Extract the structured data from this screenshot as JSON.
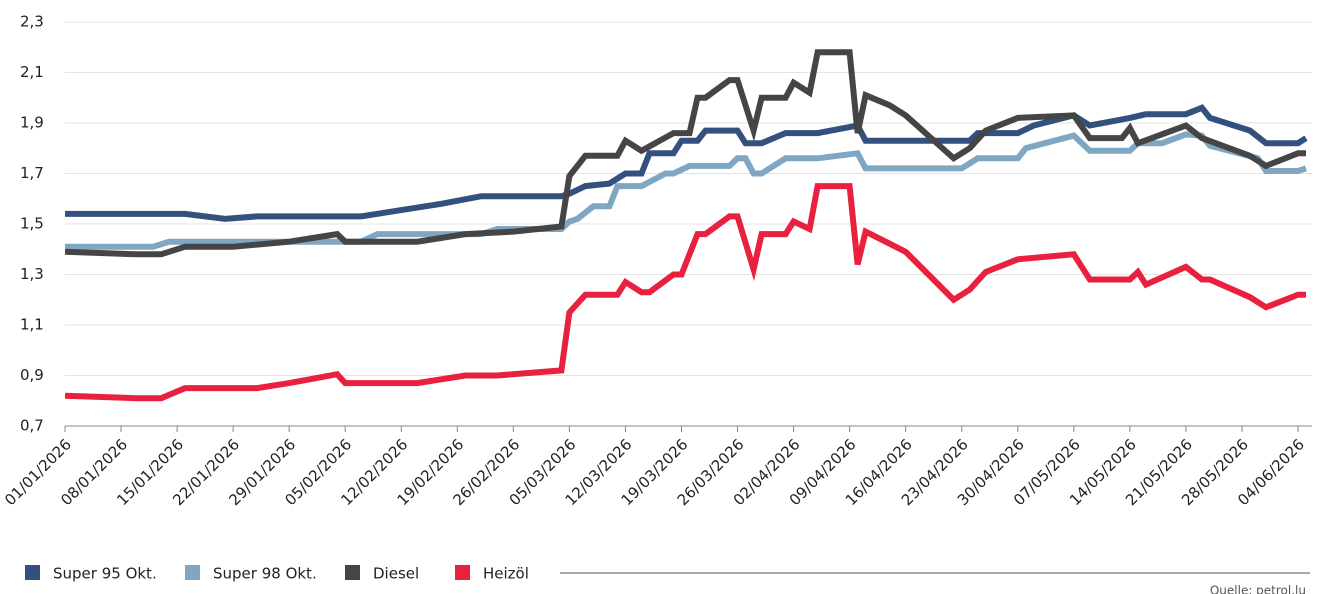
{
  "chart_data": {
    "type": "line",
    "xlim": [
      "01/01/2026",
      "05/06/2026"
    ],
    "xticks": [
      "01/01/2026",
      "08/01/2026",
      "15/01/2026",
      "22/01/2026",
      "29/01/2026",
      "05/02/2026",
      "12/02/2026",
      "19/02/2026",
      "26/02/2026",
      "05/03/2026",
      "12/03/2026",
      "19/03/2026",
      "26/03/2026",
      "02/04/2026",
      "09/04/2026",
      "16/04/2026",
      "23/04/2026",
      "30/04/2026",
      "07/05/2026",
      "14/05/2026",
      "21/05/2026",
      "28/05/2026",
      "04/06/2026"
    ],
    "ylim": [
      0.7,
      2.3
    ],
    "yticks": [
      {
        "value": 0.7,
        "label": "0,7"
      },
      {
        "value": 0.9,
        "label": "0,9"
      },
      {
        "value": 1.1,
        "label": "1,1"
      },
      {
        "value": 1.3,
        "label": "1,3"
      },
      {
        "value": 1.5,
        "label": "1,5"
      },
      {
        "value": 1.7,
        "label": "1,7"
      },
      {
        "value": 1.9,
        "label": "1,9"
      },
      {
        "value": 2.1,
        "label": "2,1"
      },
      {
        "value": 2.3,
        "label": "2,3"
      }
    ],
    "grid": true,
    "source": "Quelle: petrol.lu",
    "series": [
      {
        "name": "Super 95 Okt.",
        "color": "#34507f",
        "x": [
          "01/01/2026",
          "16/01/2026",
          "21/01/2026",
          "25/01/2026",
          "07/02/2026",
          "13/02/2026",
          "17/02/2026",
          "22/02/2026",
          "04/03/2026",
          "05/03/2026",
          "07/03/2026",
          "10/03/2026",
          "12/03/2026",
          "14/03/2026",
          "15/03/2026",
          "18/03/2026",
          "19/03/2026",
          "21/03/2026",
          "22/03/2026",
          "26/03/2026",
          "27/03/2026",
          "29/03/2026",
          "01/04/2026",
          "05/04/2026",
          "10/04/2026",
          "11/04/2026",
          "22/04/2026",
          "24/04/2026",
          "25/04/2026",
          "30/04/2026",
          "02/05/2026",
          "07/05/2026",
          "09/05/2026",
          "14/05/2026",
          "16/05/2026",
          "21/05/2026",
          "23/05/2026",
          "24/05/2026",
          "29/05/2026",
          "31/05/2026",
          "04/06/2026",
          "05/06/2026"
        ],
        "values": [
          1.54,
          1.54,
          1.52,
          1.53,
          1.53,
          1.56,
          1.58,
          1.61,
          1.61,
          1.62,
          1.65,
          1.66,
          1.7,
          1.7,
          1.78,
          1.78,
          1.83,
          1.83,
          1.87,
          1.87,
          1.82,
          1.82,
          1.86,
          1.86,
          1.89,
          1.83,
          1.83,
          1.83,
          1.86,
          1.86,
          1.89,
          1.93,
          1.89,
          1.92,
          1.935,
          1.935,
          1.96,
          1.92,
          1.87,
          1.82,
          1.82,
          1.84
        ]
      },
      {
        "name": "Super 98 Okt.",
        "color": "#7fa7c3",
        "x": [
          "01/01/2026",
          "12/01/2026",
          "14/01/2026",
          "07/02/2026",
          "09/02/2026",
          "22/02/2026",
          "24/02/2026",
          "04/03/2026",
          "05/03/2026",
          "06/03/2026",
          "08/03/2026",
          "10/03/2026",
          "11/03/2026",
          "14/03/2026",
          "17/03/2026",
          "18/03/2026",
          "20/03/2026",
          "25/03/2026",
          "26/03/2026",
          "27/03/2026",
          "28/03/2026",
          "29/03/2026",
          "01/04/2026",
          "05/04/2026",
          "10/04/2026",
          "11/04/2026",
          "23/04/2026",
          "25/04/2026",
          "30/04/2026",
          "01/05/2026",
          "07/05/2026",
          "09/05/2026",
          "14/05/2026",
          "15/05/2026",
          "18/05/2026",
          "21/05/2026",
          "23/05/2026",
          "24/05/2026",
          "30/05/2026",
          "31/05/2026",
          "04/06/2026",
          "05/06/2026"
        ],
        "values": [
          1.41,
          1.41,
          1.43,
          1.43,
          1.46,
          1.46,
          1.48,
          1.48,
          1.51,
          1.52,
          1.57,
          1.57,
          1.65,
          1.65,
          1.7,
          1.7,
          1.73,
          1.73,
          1.76,
          1.76,
          1.7,
          1.7,
          1.76,
          1.76,
          1.78,
          1.72,
          1.72,
          1.76,
          1.76,
          1.8,
          1.85,
          1.79,
          1.79,
          1.82,
          1.82,
          1.855,
          1.85,
          1.81,
          1.76,
          1.71,
          1.71,
          1.72
        ]
      },
      {
        "name": "Diesel",
        "color": "#454545",
        "x": [
          "01/01/2026",
          "10/01/2026",
          "13/01/2026",
          "16/01/2026",
          "22/01/2026",
          "29/01/2026",
          "04/02/2026",
          "05/02/2026",
          "14/02/2026",
          "20/02/2026",
          "26/02/2026",
          "04/03/2026",
          "05/03/2026",
          "07/03/2026",
          "11/03/2026",
          "12/03/2026",
          "14/03/2026",
          "18/03/2026",
          "20/03/2026",
          "21/03/2026",
          "22/03/2026",
          "25/03/2026",
          "26/03/2026",
          "28/03/2026",
          "29/03/2026",
          "01/04/2026",
          "02/04/2026",
          "04/04/2026",
          "05/04/2026",
          "09/04/2026",
          "10/04/2026",
          "11/04/2026",
          "14/04/2026",
          "16/04/2026",
          "22/04/2026",
          "24/04/2026",
          "26/04/2026",
          "30/04/2026",
          "07/05/2026",
          "09/05/2026",
          "13/05/2026",
          "14/05/2026",
          "15/05/2026",
          "21/05/2026",
          "23/05/2026",
          "29/05/2026",
          "31/05/2026",
          "04/06/2026",
          "05/06/2026"
        ],
        "values": [
          1.39,
          1.38,
          1.38,
          1.41,
          1.41,
          1.43,
          1.46,
          1.43,
          1.43,
          1.46,
          1.47,
          1.49,
          1.69,
          1.77,
          1.77,
          1.83,
          1.79,
          1.86,
          1.86,
          2.0,
          2.0,
          2.07,
          2.07,
          1.87,
          2.0,
          2.0,
          2.06,
          2.02,
          2.18,
          2.18,
          1.86,
          2.01,
          1.97,
          1.93,
          1.76,
          1.8,
          1.87,
          1.92,
          1.93,
          1.84,
          1.84,
          1.88,
          1.82,
          1.89,
          1.84,
          1.77,
          1.73,
          1.78,
          1.78
        ]
      },
      {
        "name": "Heizöl",
        "color": "#e8213f",
        "x": [
          "01/01/2026",
          "10/01/2026",
          "13/01/2026",
          "16/01/2026",
          "25/01/2026",
          "29/01/2026",
          "04/02/2026",
          "05/02/2026",
          "14/02/2026",
          "20/02/2026",
          "24/02/2026",
          "04/03/2026",
          "05/03/2026",
          "07/03/2026",
          "11/03/2026",
          "12/03/2026",
          "14/03/2026",
          "15/03/2026",
          "18/03/2026",
          "19/03/2026",
          "21/03/2026",
          "22/03/2026",
          "25/03/2026",
          "26/03/2026",
          "28/03/2026",
          "29/03/2026",
          "01/04/2026",
          "02/04/2026",
          "04/04/2026",
          "05/04/2026",
          "09/04/2026",
          "10/04/2026",
          "11/04/2026",
          "16/04/2026",
          "22/04/2026",
          "24/04/2026",
          "26/04/2026",
          "30/04/2026",
          "07/05/2026",
          "09/05/2026",
          "14/05/2026",
          "15/05/2026",
          "16/05/2026",
          "21/05/2026",
          "23/05/2026",
          "24/05/2026",
          "29/05/2026",
          "31/05/2026",
          "04/06/2026",
          "05/06/2026"
        ],
        "values": [
          0.82,
          0.81,
          0.81,
          0.85,
          0.85,
          0.87,
          0.905,
          0.87,
          0.87,
          0.9,
          0.9,
          0.92,
          1.15,
          1.22,
          1.22,
          1.27,
          1.23,
          1.23,
          1.3,
          1.3,
          1.46,
          1.46,
          1.53,
          1.53,
          1.32,
          1.46,
          1.46,
          1.51,
          1.48,
          1.65,
          1.65,
          1.34,
          1.47,
          1.39,
          1.2,
          1.24,
          1.31,
          1.36,
          1.38,
          1.28,
          1.28,
          1.31,
          1.26,
          1.33,
          1.28,
          1.28,
          1.21,
          1.17,
          1.22,
          1.22
        ]
      }
    ]
  }
}
